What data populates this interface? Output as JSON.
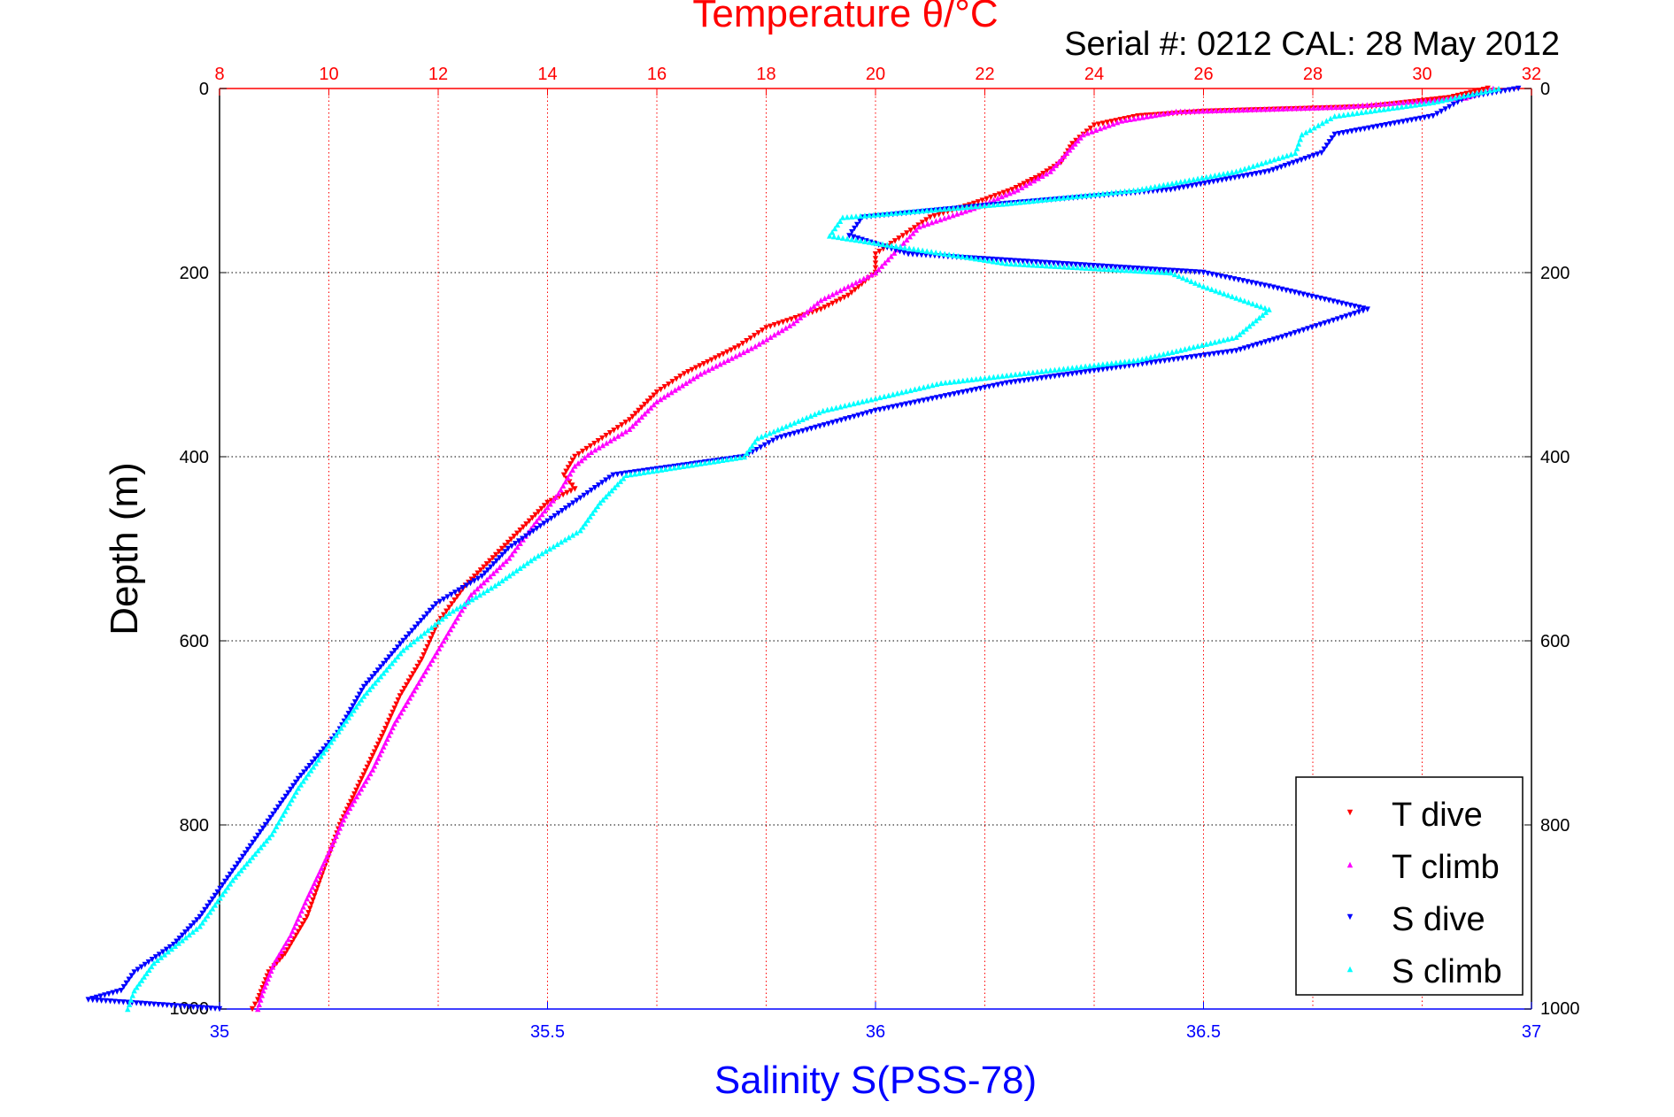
{
  "chart_data": {
    "type": "scatter",
    "title": "Temperature θ/°C",
    "subtitle": "Serial #: 0212  CAL: 28 May 2012",
    "ylabel": "Depth (m)",
    "xlabel": "Salinity S(PSS-78)",
    "x2label": "Temperature θ/°C",
    "ylim": [
      0,
      1000
    ],
    "y_reversed": true,
    "xlim_salinity": [
      35,
      37
    ],
    "xlim_temperature": [
      8,
      32
    ],
    "y_ticks": [
      "0",
      "200",
      "400",
      "600",
      "800",
      "1000"
    ],
    "x_ticks_salinity": [
      "35",
      "35.5",
      "36",
      "36.5",
      "37"
    ],
    "x_ticks_temperature": [
      "8",
      "10",
      "12",
      "14",
      "16",
      "18",
      "20",
      "22",
      "24",
      "26",
      "28",
      "30",
      "32"
    ],
    "grid": true,
    "legend_position": "bottom-right",
    "colors": {
      "temperature_axis": "#ff0000",
      "salinity_axis": "#0000ff",
      "t_dive": "#ff0000",
      "t_climb": "#ff00ff",
      "s_dive": "#0000ff",
      "s_climb": "#00ffff"
    },
    "series": [
      {
        "name": "T dive",
        "axis": "temperature",
        "marker": "triangle-down",
        "color": "#ff0000",
        "points": [
          [
            31.2,
            0
          ],
          [
            30.5,
            10
          ],
          [
            29,
            20
          ],
          [
            26,
            25
          ],
          [
            24.8,
            30
          ],
          [
            24,
            40
          ],
          [
            23.6,
            60
          ],
          [
            23.4,
            80
          ],
          [
            23,
            95
          ],
          [
            22.5,
            110
          ],
          [
            21.8,
            125
          ],
          [
            21,
            140
          ],
          [
            20.5,
            160
          ],
          [
            20,
            180
          ],
          [
            20,
            200
          ],
          [
            19.5,
            225
          ],
          [
            19,
            240
          ],
          [
            18,
            260
          ],
          [
            17.5,
            280
          ],
          [
            17,
            295
          ],
          [
            16.5,
            310
          ],
          [
            16,
            330
          ],
          [
            15.5,
            360
          ],
          [
            15,
            380
          ],
          [
            14.5,
            400
          ],
          [
            14.3,
            420
          ],
          [
            14.5,
            435
          ],
          [
            14,
            450
          ],
          [
            13.5,
            480
          ],
          [
            13,
            510
          ],
          [
            12.5,
            540
          ],
          [
            12,
            580
          ],
          [
            11.7,
            620
          ],
          [
            11.3,
            660
          ],
          [
            11,
            700
          ],
          [
            10.6,
            750
          ],
          [
            10.2,
            800
          ],
          [
            9.9,
            850
          ],
          [
            9.6,
            900
          ],
          [
            9.2,
            940
          ],
          [
            8.9,
            960
          ],
          [
            8.7,
            990
          ],
          [
            8.6,
            1000
          ]
        ]
      },
      {
        "name": "T climb",
        "axis": "temperature",
        "marker": "triangle-up",
        "color": "#ff00ff",
        "points": [
          [
            31.3,
            0
          ],
          [
            30.8,
            10
          ],
          [
            28.5,
            20
          ],
          [
            25.5,
            25
          ],
          [
            24.5,
            35
          ],
          [
            23.8,
            50
          ],
          [
            23.5,
            70
          ],
          [
            23.2,
            90
          ],
          [
            22.6,
            110
          ],
          [
            21.8,
            130
          ],
          [
            20.8,
            150
          ],
          [
            20,
            200
          ],
          [
            19,
            230
          ],
          [
            18.5,
            255
          ],
          [
            17.8,
            280
          ],
          [
            16.8,
            310
          ],
          [
            16,
            340
          ],
          [
            15.5,
            370
          ],
          [
            14.8,
            395
          ],
          [
            14.5,
            410
          ],
          [
            14.2,
            440
          ],
          [
            13.8,
            470
          ],
          [
            13.3,
            510
          ],
          [
            12.6,
            550
          ],
          [
            12.1,
            600
          ],
          [
            11.6,
            650
          ],
          [
            11.2,
            690
          ],
          [
            10.8,
            740
          ],
          [
            10.3,
            790
          ],
          [
            10,
            830
          ],
          [
            9.6,
            880
          ],
          [
            9.3,
            920
          ],
          [
            9,
            950
          ],
          [
            8.8,
            980
          ],
          [
            8.7,
            1000
          ]
        ]
      },
      {
        "name": "S dive",
        "axis": "salinity",
        "marker": "triangle-down",
        "color": "#0000ff",
        "points": [
          [
            36.98,
            0
          ],
          [
            36.9,
            10
          ],
          [
            36.85,
            30
          ],
          [
            36.7,
            50
          ],
          [
            36.68,
            70
          ],
          [
            36.6,
            90
          ],
          [
            36.45,
            110
          ],
          [
            36.2,
            125
          ],
          [
            35.98,
            140
          ],
          [
            35.96,
            160
          ],
          [
            36.05,
            180
          ],
          [
            36.5,
            200
          ],
          [
            36.6,
            215
          ],
          [
            36.75,
            240
          ],
          [
            36.62,
            270
          ],
          [
            36.55,
            285
          ],
          [
            36.4,
            300
          ],
          [
            36.2,
            320
          ],
          [
            36,
            350
          ],
          [
            35.85,
            380
          ],
          [
            35.8,
            400
          ],
          [
            35.6,
            420
          ],
          [
            35.55,
            445
          ],
          [
            35.5,
            470
          ],
          [
            35.44,
            500
          ],
          [
            35.4,
            530
          ],
          [
            35.33,
            560
          ],
          [
            35.28,
            600
          ],
          [
            35.22,
            650
          ],
          [
            35.18,
            700
          ],
          [
            35.12,
            750
          ],
          [
            35.07,
            800
          ],
          [
            35.02,
            850
          ],
          [
            34.97,
            900
          ],
          [
            34.93,
            930
          ],
          [
            34.87,
            960
          ],
          [
            34.85,
            980
          ],
          [
            34.8,
            990
          ],
          [
            35.0,
            1000
          ]
        ]
      },
      {
        "name": "S climb",
        "axis": "salinity",
        "marker": "triangle-up",
        "color": "#00ffff",
        "points": [
          [
            36.95,
            0
          ],
          [
            36.85,
            15
          ],
          [
            36.7,
            30
          ],
          [
            36.65,
            50
          ],
          [
            36.64,
            70
          ],
          [
            36.55,
            90
          ],
          [
            36.4,
            110
          ],
          [
            36.2,
            125
          ],
          [
            35.95,
            140
          ],
          [
            35.93,
            160
          ],
          [
            36.2,
            190
          ],
          [
            36.45,
            200
          ],
          [
            36.5,
            215
          ],
          [
            36.6,
            240
          ],
          [
            36.55,
            270
          ],
          [
            36.4,
            295
          ],
          [
            36.1,
            320
          ],
          [
            35.92,
            350
          ],
          [
            35.82,
            380
          ],
          [
            35.8,
            400
          ],
          [
            35.62,
            420
          ],
          [
            35.58,
            450
          ],
          [
            35.55,
            480
          ],
          [
            35.48,
            510
          ],
          [
            35.42,
            540
          ],
          [
            35.35,
            570
          ],
          [
            35.28,
            610
          ],
          [
            35.22,
            660
          ],
          [
            35.17,
            710
          ],
          [
            35.12,
            760
          ],
          [
            35.08,
            810
          ],
          [
            35.02,
            860
          ],
          [
            34.97,
            910
          ],
          [
            34.9,
            950
          ],
          [
            34.87,
            980
          ],
          [
            34.86,
            1000
          ]
        ]
      }
    ]
  }
}
